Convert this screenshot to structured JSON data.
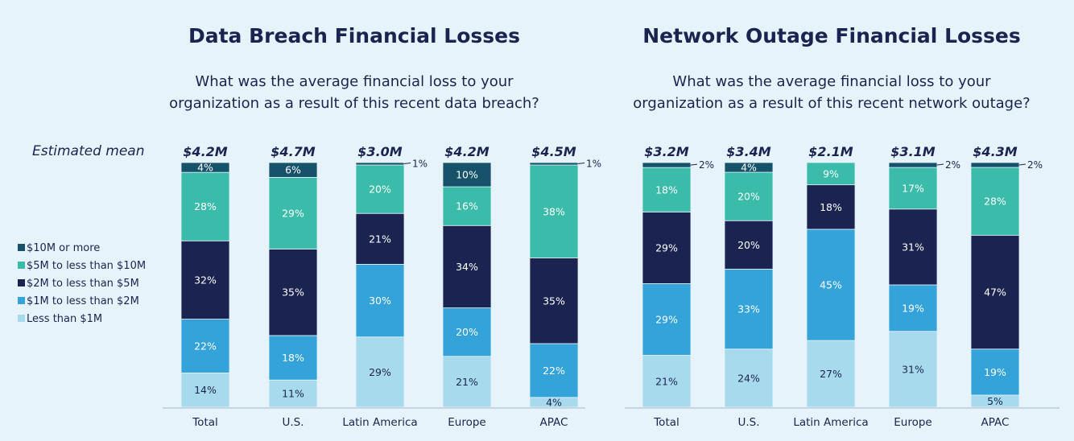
{
  "estimated_mean_label": "Estimated mean",
  "legend": [
    {
      "label": "$10M or more",
      "color": "#17526b"
    },
    {
      "label": "$5M to less than $10M",
      "color": "#3bbba9"
    },
    {
      "label": "$2M to less than $5M",
      "color": "#1b2450"
    },
    {
      "label": "$1M to less than $2M",
      "color": "#33a3da"
    },
    {
      "label": "Less than $1M",
      "color": "#a8daee"
    }
  ],
  "chart_data": [
    {
      "type": "bar",
      "title": "Data Breach Financial Losses",
      "question_lines": [
        "What was the average financial loss to your",
        "organization as a result of this recent data breach?"
      ],
      "categories": [
        "Total",
        "U.S.",
        "Latin America",
        "Europe",
        "APAC"
      ],
      "means": [
        "$4.2M",
        "$4.7M",
        "$3.0M",
        "$4.2M",
        "$4.5M"
      ],
      "series": [
        {
          "name": "Less than $1M",
          "values": [
            14,
            11,
            29,
            21,
            4
          ]
        },
        {
          "name": "$1M to less than $2M",
          "values": [
            22,
            18,
            30,
            20,
            22
          ]
        },
        {
          "name": "$2M to less than $5M",
          "values": [
            32,
            35,
            21,
            34,
            35
          ]
        },
        {
          "name": "$5M to less than $10M",
          "values": [
            28,
            29,
            20,
            16,
            38
          ]
        },
        {
          "name": "$10M or more",
          "values": [
            4,
            6,
            1,
            10,
            1
          ]
        }
      ],
      "unit": "%",
      "ylim": [
        0,
        100
      ]
    },
    {
      "type": "bar",
      "title": "Network Outage Financial Losses",
      "question_lines": [
        "What was the average financial loss to your",
        "organization as a result of this recent network outage?"
      ],
      "categories": [
        "Total",
        "U.S.",
        "Latin America",
        "Europe",
        "APAC"
      ],
      "means": [
        "$3.2M",
        "$3.4M",
        "$2.1M",
        "$3.1M",
        "$4.3M"
      ],
      "series": [
        {
          "name": "Less than $1M",
          "values": [
            21,
            24,
            27,
            31,
            5
          ]
        },
        {
          "name": "$1M to less than $2M",
          "values": [
            29,
            33,
            45,
            19,
            19
          ]
        },
        {
          "name": "$2M to less than $5M",
          "values": [
            29,
            20,
            18,
            31,
            47
          ]
        },
        {
          "name": "$5M to less than $10M",
          "values": [
            18,
            20,
            9,
            17,
            28
          ]
        },
        {
          "name": "$10M or more",
          "values": [
            2,
            4,
            0,
            2,
            2
          ]
        }
      ],
      "unit": "%",
      "ylim": [
        0,
        100
      ]
    }
  ]
}
